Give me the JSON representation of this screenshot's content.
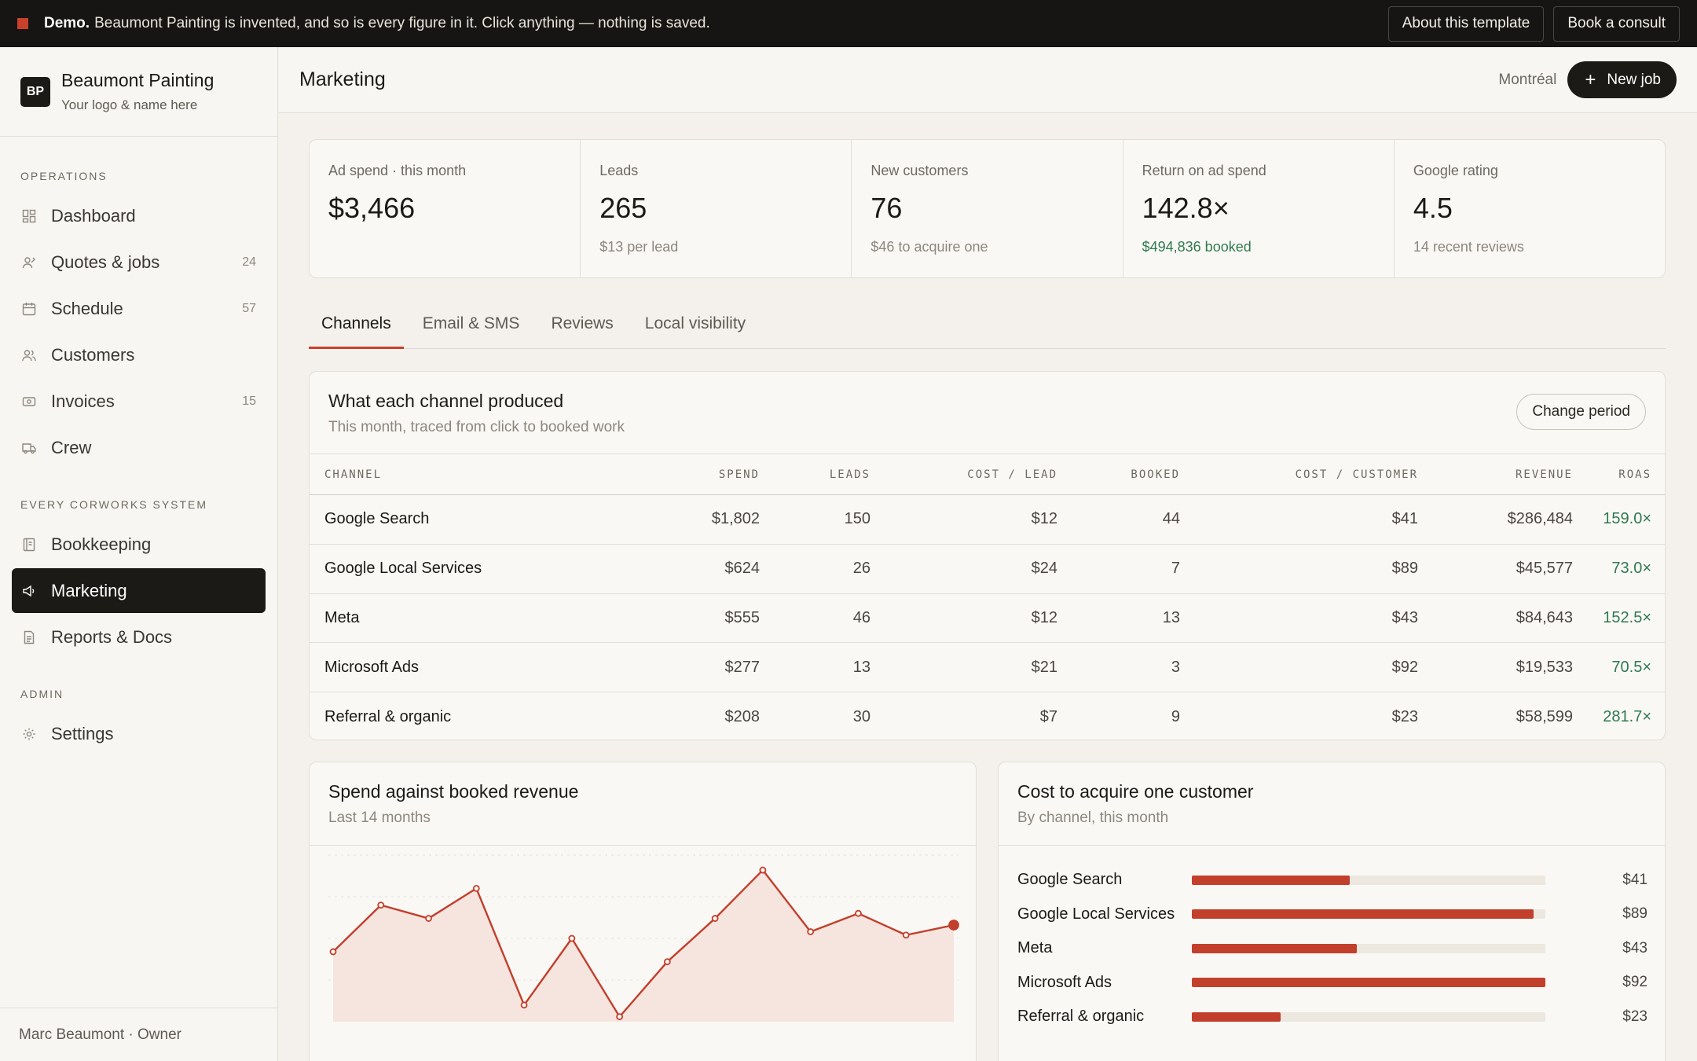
{
  "banner": {
    "bold": "Demo.",
    "text": "Beaumont Painting is invented, and so is every figure in it. Click anything — nothing is saved.",
    "about_label": "About this template",
    "consult_label": "Book a consult"
  },
  "brand": {
    "initials": "BP",
    "name": "Beaumont Painting",
    "sub": "Your logo & name here"
  },
  "sidebar": {
    "sections": [
      {
        "label": "OPERATIONS"
      },
      {
        "label": "EVERY CORWORKS SYSTEM"
      },
      {
        "label": "ADMIN"
      }
    ],
    "items": [
      {
        "label": "Dashboard",
        "icon": "dashboard-icon",
        "count": ""
      },
      {
        "label": "Quotes & jobs",
        "icon": "quote-icon",
        "count": "24"
      },
      {
        "label": "Schedule",
        "icon": "calendar-icon",
        "count": "57"
      },
      {
        "label": "Customers",
        "icon": "users-icon",
        "count": ""
      },
      {
        "label": "Invoices",
        "icon": "invoice-icon",
        "count": "15"
      },
      {
        "label": "Crew",
        "icon": "truck-icon",
        "count": ""
      },
      {
        "label": "Bookkeeping",
        "icon": "book-icon",
        "count": ""
      },
      {
        "label": "Marketing",
        "icon": "megaphone-icon",
        "count": ""
      },
      {
        "label": "Reports & Docs",
        "icon": "document-icon",
        "count": ""
      },
      {
        "label": "Settings",
        "icon": "gear-icon",
        "count": ""
      }
    ],
    "footer": "Marc Beaumont · Owner"
  },
  "header": {
    "title": "Marketing",
    "location": "Montréal",
    "new_job_label": "New job"
  },
  "kpis": [
    {
      "label": "Ad spend · this month",
      "value": "$3,466",
      "sub": ""
    },
    {
      "label": "Leads",
      "value": "265",
      "sub": "$13 per lead"
    },
    {
      "label": "New customers",
      "value": "76",
      "sub": "$46 to acquire one"
    },
    {
      "label": "Return on ad spend",
      "value": "142.8×",
      "sub": "$494,836 booked"
    },
    {
      "label": "Google rating",
      "value": "4.5",
      "sub": "14 recent reviews"
    }
  ],
  "tabs": [
    "Channels",
    "Email & SMS",
    "Reviews",
    "Local visibility"
  ],
  "channels_card": {
    "title": "What each channel produced",
    "subtitle": "This month, traced from click to booked work",
    "change_label": "Change period",
    "columns": [
      "CHANNEL",
      "SPEND",
      "LEADS",
      "COST / LEAD",
      "BOOKED",
      "COST / CUSTOMER",
      "REVENUE",
      "ROAS"
    ],
    "rows": [
      [
        "Google Search",
        "$1,802",
        "150",
        "$12",
        "44",
        "$41",
        "$286,484",
        "159.0×"
      ],
      [
        "Google Local Services",
        "$624",
        "26",
        "$24",
        "7",
        "$89",
        "$45,577",
        "73.0×"
      ],
      [
        "Meta",
        "$555",
        "46",
        "$12",
        "13",
        "$43",
        "$84,643",
        "152.5×"
      ],
      [
        "Microsoft Ads",
        "$277",
        "13",
        "$21",
        "3",
        "$92",
        "$19,533",
        "70.5×"
      ],
      [
        "Referral & organic",
        "$208",
        "30",
        "$7",
        "9",
        "$23",
        "$58,599",
        "281.7×"
      ]
    ]
  },
  "spend_card": {
    "title": "Spend against booked revenue",
    "subtitle": "Last 14 months"
  },
  "chart_data": {
    "type": "area",
    "title": "Spend against booked revenue",
    "subtitle": "Last 14 months",
    "x": [
      1,
      2,
      3,
      4,
      5,
      6,
      7,
      8,
      9,
      10,
      11,
      12,
      13,
      14
    ],
    "series": [
      {
        "values": [
          0.42,
          0.7,
          0.62,
          0.8,
          0.1,
          0.5,
          0.03,
          0.36,
          0.62,
          0.91,
          0.54,
          0.65,
          0.52,
          0.58
        ]
      }
    ],
    "ylim": [
      0,
      1
    ],
    "grid": true,
    "color": "#c23f2c",
    "fill": "#f6e4de"
  },
  "cac_card": {
    "title": "Cost to acquire one customer",
    "subtitle": "By channel, this month",
    "max": 92,
    "rows": [
      {
        "name": "Google Search",
        "value": 41,
        "label": "$41"
      },
      {
        "name": "Google Local Services",
        "value": 89,
        "label": "$89"
      },
      {
        "name": "Meta",
        "value": 43,
        "label": "$43"
      },
      {
        "name": "Microsoft Ads",
        "value": 92,
        "label": "$92"
      },
      {
        "name": "Referral & organic",
        "value": 23,
        "label": "$23"
      }
    ]
  }
}
